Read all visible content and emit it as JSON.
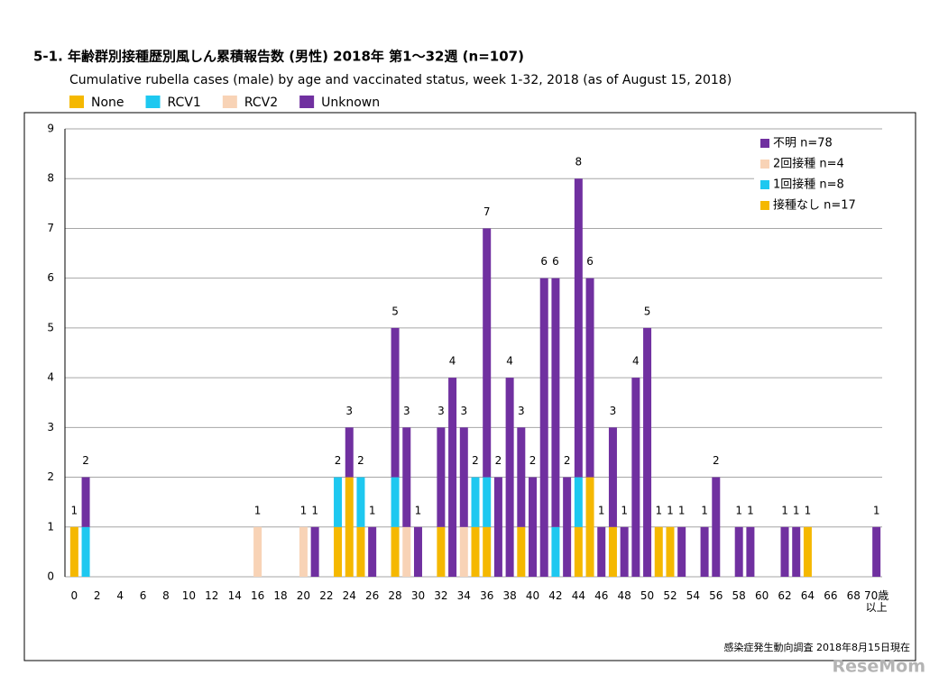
{
  "chart_data": {
    "type": "stacked_bar",
    "title": "5-1. 年齢群別接種歴別風しん累積報告数 (男性)  2018年 第1～32週 (n=107)",
    "subtitle": "Cumulative rubella cases (male) by age and vaccinated status, week 1-32, 2018 (as of August 15, 2018)",
    "source": "感染症発生動向調査 2018年8月15日現在",
    "watermark": "ReseMom",
    "categories": [
      "0",
      null,
      "2",
      null,
      "4",
      null,
      "6",
      null,
      "8",
      null,
      "10",
      null,
      "12",
      null,
      "14",
      null,
      "16",
      null,
      "18",
      null,
      "20",
      null,
      "22",
      null,
      "24",
      null,
      "26",
      null,
      "28",
      null,
      "30",
      null,
      "32",
      null,
      "34",
      null,
      "36",
      null,
      "38",
      null,
      "40",
      null,
      "42",
      null,
      "44",
      null,
      "46",
      null,
      "48",
      null,
      "50",
      null,
      "52",
      null,
      "54",
      null,
      "56",
      null,
      "58",
      null,
      "60",
      null,
      "62",
      null,
      "64",
      null,
      "66",
      null,
      "68",
      null,
      "70歳以上"
    ],
    "series": [
      {
        "name": "None",
        "legend_ja": "接種なし n=17",
        "color": "#f5b800",
        "values": [
          1,
          0,
          0,
          0,
          0,
          0,
          0,
          0,
          0,
          0,
          0,
          0,
          0,
          0,
          0,
          0,
          0,
          0,
          0,
          0,
          0,
          0,
          0,
          1,
          2,
          1,
          0,
          0,
          1,
          0,
          0,
          0,
          1,
          0,
          0,
          1,
          1,
          0,
          0,
          1,
          0,
          0,
          0,
          0,
          1,
          2,
          0,
          1,
          0,
          0,
          0,
          1,
          1,
          0,
          0,
          0,
          0,
          0,
          0,
          0,
          0,
          0,
          0,
          0,
          1,
          0,
          0,
          0,
          0,
          0,
          0
        ]
      },
      {
        "name": "RCV1",
        "legend_ja": "1回接種 n=8",
        "color": "#1ec8f0",
        "values": [
          0,
          1,
          0,
          0,
          0,
          0,
          0,
          0,
          0,
          0,
          0,
          0,
          0,
          0,
          0,
          0,
          0,
          0,
          0,
          0,
          0,
          0,
          0,
          1,
          0,
          1,
          0,
          0,
          1,
          0,
          0,
          0,
          0,
          0,
          0,
          1,
          1,
          0,
          0,
          0,
          0,
          0,
          1,
          0,
          1,
          0,
          0,
          0,
          0,
          0,
          0,
          0,
          0,
          0,
          0,
          0,
          0,
          0,
          0,
          0,
          0,
          0,
          0,
          0,
          0,
          0,
          0,
          0,
          0,
          0,
          0
        ]
      },
      {
        "name": "RCV2",
        "legend_ja": "2回接種 n=4",
        "color": "#f8d3b6",
        "values": [
          0,
          0,
          0,
          0,
          0,
          0,
          0,
          0,
          0,
          0,
          0,
          0,
          0,
          0,
          0,
          0,
          1,
          0,
          0,
          0,
          1,
          0,
          0,
          0,
          0,
          0,
          0,
          0,
          0,
          1,
          0,
          0,
          0,
          0,
          1,
          0,
          0,
          0,
          0,
          0,
          0,
          0,
          0,
          0,
          0,
          0,
          0,
          0,
          0,
          0,
          0,
          0,
          0,
          0,
          0,
          0,
          0,
          0,
          0,
          0,
          0,
          0,
          0,
          0,
          0,
          0,
          0,
          0,
          0,
          0,
          0
        ]
      },
      {
        "name": "Unknown",
        "legend_ja": "不明 n=78",
        "color": "#7030a0",
        "values": [
          0,
          1,
          0,
          0,
          0,
          0,
          0,
          0,
          0,
          0,
          0,
          0,
          0,
          0,
          0,
          0,
          0,
          0,
          0,
          0,
          0,
          1,
          0,
          0,
          1,
          0,
          1,
          0,
          3,
          2,
          1,
          0,
          2,
          4,
          2,
          0,
          5,
          2,
          4,
          2,
          2,
          6,
          5,
          2,
          6,
          4,
          1,
          2,
          1,
          4,
          5,
          0,
          0,
          1,
          0,
          1,
          2,
          0,
          1,
          1,
          0,
          0,
          1,
          1,
          0,
          0,
          0,
          0,
          0,
          0,
          1
        ]
      }
    ],
    "totals": [
      1,
      2,
      null,
      null,
      null,
      null,
      null,
      null,
      null,
      null,
      null,
      null,
      null,
      null,
      null,
      null,
      1,
      null,
      null,
      null,
      1,
      1,
      null,
      2,
      3,
      2,
      1,
      null,
      5,
      3,
      1,
      null,
      3,
      4,
      3,
      2,
      7,
      2,
      4,
      3,
      2,
      6,
      6,
      2,
      8,
      6,
      1,
      3,
      1,
      4,
      5,
      1,
      1,
      1,
      null,
      1,
      2,
      null,
      1,
      1,
      null,
      null,
      1,
      1,
      1,
      null,
      null,
      null,
      null,
      null,
      1
    ],
    "ylim": [
      0,
      9
    ],
    "yticks": [
      0,
      1,
      2,
      3,
      4,
      5,
      6,
      7,
      8,
      9
    ],
    "grid": true
  }
}
